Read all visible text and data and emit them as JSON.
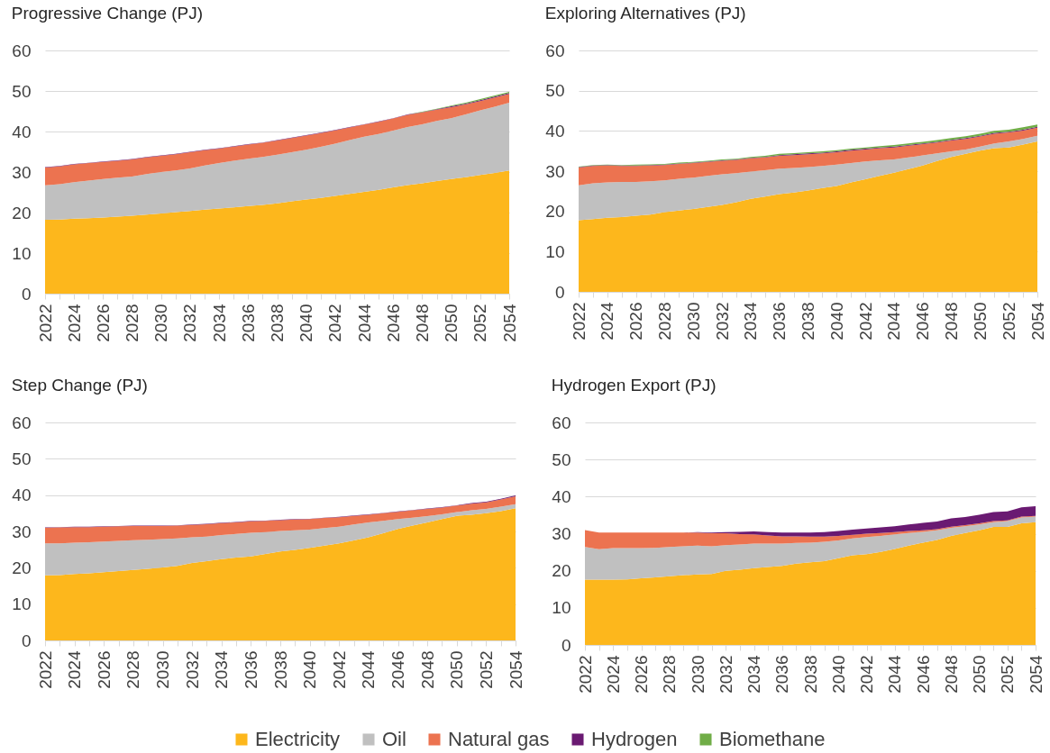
{
  "chart_data": [
    {
      "type": "area",
      "title": "Progressive Change (PJ)",
      "stacked": true,
      "grid": "y",
      "legend": "bottom",
      "x": [
        2022,
        2023,
        2024,
        2025,
        2026,
        2027,
        2028,
        2029,
        2030,
        2031,
        2032,
        2033,
        2034,
        2035,
        2036,
        2037,
        2038,
        2039,
        2040,
        2041,
        2042,
        2043,
        2044,
        2045,
        2046,
        2047,
        2048,
        2049,
        2050,
        2051,
        2052,
        2053,
        2054
      ],
      "xlim": [
        2022,
        2054
      ],
      "xticks": [
        2022,
        {
          "value": 2023,
          "label": null
        },
        2024,
        {
          "value": 2025,
          "label": null
        },
        2026,
        {
          "value": 2027,
          "label": null
        },
        2028,
        {
          "value": 2029,
          "label": null
        },
        2030,
        {
          "value": 2031,
          "label": null
        },
        2032,
        {
          "value": 2033,
          "label": null
        },
        2034,
        {
          "value": 2035,
          "label": null
        },
        2036,
        {
          "value": 2037,
          "label": null
        },
        2038,
        {
          "value": 2039,
          "label": null
        },
        2040,
        {
          "value": 2041,
          "label": null
        },
        2042,
        {
          "value": 2043,
          "label": null
        },
        2044,
        {
          "value": 2045,
          "label": null
        },
        2046,
        {
          "value": 2047,
          "label": null
        },
        2048,
        {
          "value": 2049,
          "label": null
        },
        2050,
        {
          "value": 2051,
          "label": null
        },
        2052,
        {
          "value": 2053,
          "label": null
        },
        2054
      ],
      "ylim": [
        0,
        60
      ],
      "yticks": [
        0,
        10,
        20,
        30,
        40,
        50,
        60
      ],
      "series": [
        {
          "name": "Electricity",
          "color": "#fdb71c",
          "values": [
            18.2,
            18.3,
            18.5,
            18.6,
            18.8,
            19.0,
            19.2,
            19.5,
            19.8,
            20.1,
            20.4,
            20.7,
            21.0,
            21.3,
            21.6,
            21.9,
            22.3,
            22.8,
            23.2,
            23.6,
            24.1,
            24.6,
            25.1,
            25.6,
            26.2,
            26.8,
            27.2,
            27.8,
            28.3,
            28.7,
            29.3,
            29.8,
            30.4
          ]
        },
        {
          "name": "Oil",
          "color": "#c0c0c0",
          "values": [
            8.5,
            8.7,
            9.0,
            9.3,
            9.5,
            9.6,
            9.7,
            10.0,
            10.2,
            10.3,
            10.5,
            10.9,
            11.2,
            11.5,
            11.7,
            11.8,
            12.0,
            12.1,
            12.3,
            12.6,
            12.9,
            13.3,
            13.6,
            13.8,
            14.0,
            14.3,
            14.6,
            14.8,
            15.0,
            15.5,
            15.9,
            16.3,
            16.7
          ]
        },
        {
          "name": "Natural gas",
          "color": "#ec7350",
          "values": [
            4.4,
            4.4,
            4.4,
            4.3,
            4.2,
            4.2,
            4.2,
            4.1,
            4.0,
            4.0,
            4.0,
            3.8,
            3.6,
            3.5,
            3.5,
            3.5,
            3.5,
            3.5,
            3.5,
            3.4,
            3.3,
            3.1,
            3.0,
            3.0,
            3.0,
            3.0,
            2.9,
            2.8,
            2.7,
            2.5,
            2.3,
            2.3,
            2.2
          ]
        },
        {
          "name": "Hydrogen",
          "color": "#6a1a72",
          "values": [
            0.1,
            0.1,
            0.1,
            0.1,
            0.1,
            0.1,
            0.1,
            0.1,
            0.1,
            0.1,
            0.1,
            0.1,
            0.1,
            0.1,
            0.1,
            0.1,
            0.1,
            0.1,
            0.1,
            0.1,
            0.1,
            0.1,
            0.1,
            0.1,
            0.1,
            0.1,
            0.1,
            0.1,
            0.2,
            0.2,
            0.2,
            0.2,
            0.2
          ]
        },
        {
          "name": "Biomethane",
          "color": "#70ad47",
          "values": [
            0,
            0,
            0,
            0,
            0,
            0,
            0,
            0,
            0,
            0,
            0,
            0,
            0,
            0,
            0,
            0,
            0,
            0,
            0,
            0,
            0,
            0,
            0,
            0,
            0,
            0,
            0.1,
            0.1,
            0.2,
            0.2,
            0.3,
            0.3,
            0.3
          ]
        }
      ]
    },
    {
      "type": "area",
      "title": "Exploring Alternatives (PJ)",
      "stacked": true,
      "grid": "y",
      "legend": "bottom",
      "x": [
        2022,
        2023,
        2024,
        2025,
        2026,
        2027,
        2028,
        2029,
        2030,
        2031,
        2032,
        2033,
        2034,
        2035,
        2036,
        2037,
        2038,
        2039,
        2040,
        2041,
        2042,
        2043,
        2044,
        2045,
        2046,
        2047,
        2048,
        2049,
        2050,
        2051,
        2052,
        2053,
        2054
      ],
      "xlim": [
        2022,
        2054
      ],
      "xticks": [
        2022,
        {
          "value": 2023,
          "label": null
        },
        2024,
        {
          "value": 2025,
          "label": null
        },
        2026,
        {
          "value": 2027,
          "label": null
        },
        2028,
        {
          "value": 2029,
          "label": null
        },
        2030,
        {
          "value": 2031,
          "label": null
        },
        2032,
        {
          "value": 2033,
          "label": null
        },
        2034,
        {
          "value": 2035,
          "label": null
        },
        2036,
        {
          "value": 2037,
          "label": null
        },
        2038,
        {
          "value": 2039,
          "label": null
        },
        2040,
        {
          "value": 2041,
          "label": null
        },
        2042,
        {
          "value": 2043,
          "label": null
        },
        2044,
        {
          "value": 2045,
          "label": null
        },
        2046,
        {
          "value": 2047,
          "label": null
        },
        2048,
        {
          "value": 2049,
          "label": null
        },
        2050,
        {
          "value": 2051,
          "label": null
        },
        2052,
        {
          "value": 2053,
          "label": null
        },
        2054
      ],
      "ylim": [
        0,
        60
      ],
      "yticks": [
        0,
        10,
        20,
        30,
        40,
        50,
        60
      ],
      "series": [
        {
          "name": "Electricity",
          "color": "#fdb71c",
          "values": [
            17.8,
            18.1,
            18.4,
            18.6,
            18.9,
            19.2,
            19.8,
            20.2,
            20.6,
            21.1,
            21.6,
            22.3,
            23.1,
            23.7,
            24.3,
            24.7,
            25.2,
            25.8,
            26.3,
            27.2,
            28.0,
            28.8,
            29.6,
            30.5,
            31.4,
            32.5,
            33.5,
            34.3,
            35.1,
            35.7,
            35.9,
            36.6,
            37.4
          ]
        },
        {
          "name": "Oil",
          "color": "#c0c0c0",
          "values": [
            8.7,
            8.9,
            8.8,
            8.7,
            8.4,
            8.3,
            7.9,
            7.9,
            7.8,
            7.7,
            7.6,
            7.2,
            6.8,
            6.5,
            6.3,
            6.1,
            5.8,
            5.5,
            5.3,
            4.8,
            4.4,
            3.9,
            3.3,
            2.9,
            2.5,
            1.9,
            1.4,
            1.1,
            1.0,
            1.2,
            1.5,
            1.4,
            1.4
          ]
        },
        {
          "name": "Natural gas",
          "color": "#ec7350",
          "values": [
            4.4,
            4.3,
            4.2,
            4.0,
            4.0,
            3.9,
            3.8,
            3.7,
            3.6,
            3.5,
            3.4,
            3.3,
            3.3,
            3.2,
            3.2,
            3.2,
            3.2,
            3.1,
            3.1,
            3.1,
            3.0,
            3.0,
            3.0,
            2.9,
            2.8,
            2.7,
            2.7,
            2.6,
            2.5,
            2.4,
            2.2,
            2.1,
            2.0
          ]
        },
        {
          "name": "Hydrogen",
          "color": "#6a1a72",
          "values": [
            0.1,
            0.1,
            0.1,
            0.1,
            0.1,
            0.1,
            0.1,
            0.1,
            0.1,
            0.1,
            0.1,
            0.1,
            0.1,
            0.1,
            0.2,
            0.2,
            0.2,
            0.2,
            0.2,
            0.2,
            0.2,
            0.2,
            0.2,
            0.2,
            0.2,
            0.2,
            0.2,
            0.2,
            0.2,
            0.2,
            0.2,
            0.2,
            0.2
          ]
        },
        {
          "name": "Biomethane",
          "color": "#70ad47",
          "values": [
            0.1,
            0.1,
            0.1,
            0.1,
            0.2,
            0.2,
            0.2,
            0.2,
            0.2,
            0.2,
            0.2,
            0.2,
            0.2,
            0.3,
            0.3,
            0.3,
            0.3,
            0.3,
            0.3,
            0.3,
            0.3,
            0.3,
            0.4,
            0.4,
            0.4,
            0.4,
            0.4,
            0.5,
            0.5,
            0.5,
            0.5,
            0.6,
            0.6
          ]
        }
      ]
    },
    {
      "type": "area",
      "title": "Step Change (PJ)",
      "stacked": true,
      "grid": "y",
      "legend": "bottom",
      "x": [
        2022,
        2023,
        2024,
        2025,
        2026,
        2027,
        2028,
        2029,
        2030,
        2031,
        2032,
        2033,
        2034,
        2035,
        2036,
        2037,
        2038,
        2039,
        2040,
        2041,
        2042,
        2043,
        2044,
        2045,
        2046,
        2047,
        2048,
        2049,
        2050,
        2051,
        2052,
        2053,
        2054
      ],
      "xlim": [
        2022,
        2054
      ],
      "xticks": [
        2022,
        {
          "value": 2023,
          "label": null
        },
        2024,
        {
          "value": 2025,
          "label": null
        },
        2026,
        {
          "value": 2027,
          "label": null
        },
        2028,
        {
          "value": 2029,
          "label": null
        },
        2030,
        {
          "value": 2031,
          "label": null
        },
        2032,
        {
          "value": 2033,
          "label": null
        },
        2034,
        {
          "value": 2035,
          "label": null
        },
        2036,
        {
          "value": 2037,
          "label": null
        },
        2038,
        {
          "value": 2039,
          "label": null
        },
        2040,
        {
          "value": 2041,
          "label": null
        },
        2042,
        {
          "value": 2043,
          "label": null
        },
        2044,
        {
          "value": 2045,
          "label": null
        },
        2046,
        {
          "value": 2047,
          "label": null
        },
        2048,
        {
          "value": 2049,
          "label": null
        },
        2050,
        {
          "value": 2051,
          "label": null
        },
        2052,
        {
          "value": 2053,
          "label": null
        },
        2054
      ],
      "ylim": [
        0,
        60
      ],
      "yticks": [
        0,
        10,
        20,
        30,
        40,
        50,
        60
      ],
      "series": [
        {
          "name": "Electricity",
          "color": "#fdb71c",
          "values": [
            17.9,
            18.0,
            18.3,
            18.5,
            18.8,
            19.1,
            19.4,
            19.7,
            20.1,
            20.5,
            21.3,
            21.8,
            22.4,
            22.8,
            23.1,
            23.8,
            24.5,
            24.9,
            25.5,
            26.1,
            26.7,
            27.5,
            28.4,
            29.5,
            30.7,
            31.6,
            32.5,
            33.4,
            34.3,
            34.6,
            35.0,
            35.6,
            36.4
          ]
        },
        {
          "name": "Oil",
          "color": "#c0c0c0",
          "values": [
            8.8,
            8.7,
            8.6,
            8.5,
            8.4,
            8.3,
            8.2,
            8.0,
            7.8,
            7.6,
            7.1,
            6.8,
            6.6,
            6.5,
            6.5,
            6.0,
            5.6,
            5.4,
            5.0,
            4.8,
            4.6,
            4.4,
            4.1,
            3.4,
            2.7,
            2.2,
            1.7,
            1.3,
            1.0,
            1.2,
            1.2,
            1.2,
            1.1
          ]
        },
        {
          "name": "Natural gas",
          "color": "#ec7350",
          "values": [
            4.3,
            4.4,
            4.3,
            4.2,
            4.1,
            4.0,
            3.9,
            3.8,
            3.6,
            3.5,
            3.4,
            3.4,
            3.3,
            3.2,
            3.2,
            3.1,
            3.0,
            3.0,
            2.9,
            2.8,
            2.6,
            2.4,
            2.1,
            2.1,
            2.0,
            2.0,
            2.0,
            1.9,
            1.8,
            1.8,
            1.8,
            2.0,
            2.2
          ]
        },
        {
          "name": "Hydrogen",
          "color": "#6a1a72",
          "values": [
            0.1,
            0.1,
            0.1,
            0.1,
            0.1,
            0.1,
            0.1,
            0.1,
            0.1,
            0.1,
            0.1,
            0.1,
            0.1,
            0.1,
            0.1,
            0.1,
            0.1,
            0.1,
            0.1,
            0.1,
            0.1,
            0.1,
            0.1,
            0.1,
            0.1,
            0.1,
            0.1,
            0.1,
            0.1,
            0.2,
            0.2,
            0.2,
            0.2
          ]
        }
      ]
    },
    {
      "type": "area",
      "title": "Hydrogen Export (PJ)",
      "stacked": true,
      "grid": "y",
      "legend": "bottom",
      "x": [
        2022,
        2023,
        2024,
        2025,
        2026,
        2027,
        2028,
        2029,
        2030,
        2031,
        2032,
        2033,
        2034,
        2035,
        2036,
        2037,
        2038,
        2039,
        2040,
        2041,
        2042,
        2043,
        2044,
        2045,
        2046,
        2047,
        2048,
        2049,
        2050,
        2051,
        2052,
        2053,
        2054
      ],
      "xlim": [
        2022,
        2054
      ],
      "xticks": [
        2022,
        {
          "value": 2023,
          "label": null
        },
        2024,
        {
          "value": 2025,
          "label": null
        },
        2026,
        {
          "value": 2027,
          "label": null
        },
        2028,
        {
          "value": 2029,
          "label": null
        },
        2030,
        {
          "value": 2031,
          "label": null
        },
        2032,
        {
          "value": 2033,
          "label": null
        },
        2034,
        {
          "value": 2035,
          "label": null
        },
        2036,
        {
          "value": 2037,
          "label": null
        },
        2038,
        {
          "value": 2039,
          "label": null
        },
        2040,
        {
          "value": 2041,
          "label": null
        },
        2042,
        {
          "value": 2043,
          "label": null
        },
        2044,
        {
          "value": 2045,
          "label": null
        },
        2046,
        {
          "value": 2047,
          "label": null
        },
        2048,
        {
          "value": 2049,
          "label": null
        },
        2050,
        {
          "value": 2051,
          "label": null
        },
        2052,
        {
          "value": 2053,
          "label": null
        },
        2054
      ],
      "ylim": [
        0,
        60
      ],
      "yticks": [
        0,
        10,
        20,
        30,
        40,
        50,
        60
      ],
      "series": [
        {
          "name": "Electricity",
          "color": "#fdb71c",
          "values": [
            17.6,
            17.6,
            17.6,
            17.7,
            18.0,
            18.2,
            18.5,
            18.8,
            19.0,
            19.1,
            20.0,
            20.3,
            20.7,
            21.0,
            21.3,
            21.9,
            22.3,
            22.6,
            23.4,
            24.2,
            24.5,
            25.1,
            25.9,
            26.8,
            27.6,
            28.3,
            29.4,
            30.2,
            30.9,
            31.8,
            31.8,
            32.8,
            33.1
          ]
        },
        {
          "name": "Oil",
          "color": "#c0c0c0",
          "values": [
            8.8,
            8.2,
            8.5,
            8.4,
            8.1,
            8.0,
            7.9,
            7.8,
            7.8,
            7.5,
            6.9,
            6.8,
            6.6,
            6.3,
            6.0,
            5.6,
            5.3,
            5.2,
            4.8,
            4.5,
            4.6,
            4.3,
            3.9,
            3.4,
            2.9,
            2.6,
            2.2,
            1.8,
            1.6,
            1.3,
            1.6,
            1.6,
            1.5
          ]
        },
        {
          "name": "Natural gas",
          "color": "#ec7350",
          "values": [
            4.6,
            4.5,
            4.2,
            4.2,
            4.2,
            4.1,
            3.9,
            3.7,
            3.5,
            3.5,
            3.2,
            2.8,
            2.5,
            2.2,
            2.0,
            1.8,
            1.6,
            1.4,
            1.2,
            1.0,
            0.9,
            0.8,
            0.6,
            0.5,
            0.4,
            0.3,
            0.3,
            0.3,
            0.3,
            0.3,
            0.2,
            0.2,
            0.2
          ]
        },
        {
          "name": "Hydrogen",
          "color": "#6a1a72",
          "values": [
            0,
            0,
            0,
            0,
            0,
            0,
            0,
            0,
            0.1,
            0.2,
            0.3,
            0.6,
            0.8,
            0.9,
            1.0,
            1.0,
            1.1,
            1.2,
            1.3,
            1.4,
            1.4,
            1.5,
            1.6,
            1.8,
            2.0,
            2.1,
            2.2,
            2.2,
            2.3,
            2.4,
            2.4,
            2.5,
            2.6
          ]
        }
      ]
    }
  ]
}
